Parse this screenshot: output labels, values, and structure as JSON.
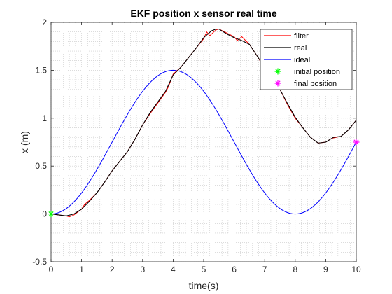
{
  "chart_data": {
    "type": "line",
    "title": "EKF position x sensor real time",
    "xlabel": "time(s)",
    "ylabel": "x (m)",
    "xlim": [
      0,
      10
    ],
    "ylim": [
      -0.5,
      2
    ],
    "xticks": [
      "0",
      "1",
      "2",
      "3",
      "4",
      "5",
      "6",
      "7",
      "8",
      "9",
      "10"
    ],
    "yticks": [
      "-0.5",
      "0",
      "0.5",
      "1",
      "1.5",
      "2"
    ],
    "grid": "minor dotted",
    "legend_position": "top-right",
    "series": [
      {
        "name": "filter",
        "color": "#ff0000",
        "x": [
          0,
          0.25,
          0.5,
          0.6,
          0.75,
          1.0,
          1.1,
          1.25,
          1.5,
          1.75,
          2.0,
          2.25,
          2.5,
          2.75,
          3.0,
          3.25,
          3.5,
          3.75,
          3.85,
          4.0,
          4.25,
          4.5,
          4.75,
          5.0,
          5.1,
          5.2,
          5.4,
          5.5,
          5.75,
          6.0,
          6.1,
          6.25,
          6.5,
          6.75,
          7.0,
          7.25,
          7.5,
          7.75,
          8.0,
          8.25,
          8.5,
          8.75,
          9.0,
          9.2,
          9.5,
          9.75,
          10.0
        ],
        "y": [
          0.0,
          -0.01,
          -0.02,
          -0.03,
          -0.01,
          0.05,
          0.1,
          0.14,
          0.22,
          0.33,
          0.45,
          0.55,
          0.65,
          0.78,
          0.93,
          1.05,
          1.16,
          1.27,
          1.33,
          1.46,
          1.53,
          1.63,
          1.73,
          1.83,
          1.9,
          1.86,
          1.92,
          1.93,
          1.89,
          1.85,
          1.81,
          1.85,
          1.77,
          1.65,
          1.52,
          1.41,
          1.3,
          1.14,
          1.0,
          0.9,
          0.8,
          0.74,
          0.75,
          0.79,
          0.81,
          0.88,
          0.98
        ]
      },
      {
        "name": "real",
        "color": "#000000",
        "x": [
          0,
          0.25,
          0.5,
          0.75,
          1.0,
          1.25,
          1.5,
          1.75,
          2.0,
          2.25,
          2.5,
          2.75,
          3.0,
          3.25,
          3.5,
          3.75,
          4.0,
          4.25,
          4.5,
          4.75,
          5.0,
          5.25,
          5.4,
          5.5,
          5.75,
          6.0,
          6.25,
          6.5,
          6.75,
          7.0,
          7.25,
          7.5,
          7.75,
          8.0,
          8.25,
          8.5,
          8.75,
          9.0,
          9.25,
          9.5,
          9.75,
          10.0
        ],
        "y": [
          0.0,
          -0.01,
          -0.02,
          0.0,
          0.05,
          0.13,
          0.22,
          0.33,
          0.45,
          0.55,
          0.65,
          0.78,
          0.93,
          1.06,
          1.17,
          1.28,
          1.45,
          1.53,
          1.63,
          1.73,
          1.84,
          1.91,
          1.93,
          1.93,
          1.88,
          1.84,
          1.81,
          1.77,
          1.65,
          1.53,
          1.41,
          1.3,
          1.15,
          1.01,
          0.9,
          0.8,
          0.74,
          0.75,
          0.8,
          0.81,
          0.88,
          0.98
        ]
      },
      {
        "name": "ideal",
        "color": "#0000ff",
        "function": "0.75*(1-cos(pi*t/4))",
        "x": [
          0,
          0.5,
          1,
          1.5,
          2,
          2.5,
          3,
          3.5,
          4,
          4.5,
          5,
          5.5,
          6,
          6.5,
          7,
          7.5,
          8,
          8.5,
          9,
          9.5,
          10
        ],
        "y": [
          0.0,
          0.057,
          0.22,
          0.463,
          0.75,
          1.037,
          1.28,
          1.443,
          1.5,
          1.443,
          1.28,
          1.037,
          0.75,
          0.463,
          0.22,
          0.057,
          0.0,
          0.057,
          0.22,
          0.463,
          0.75
        ]
      },
      {
        "name": "initial position",
        "color": "#00ff00",
        "marker": "*",
        "x": [
          0
        ],
        "y": [
          0
        ]
      },
      {
        "name": "final position",
        "color": "#ff00ff",
        "marker": "*",
        "x": [
          10
        ],
        "y": [
          0.75
        ]
      }
    ]
  }
}
